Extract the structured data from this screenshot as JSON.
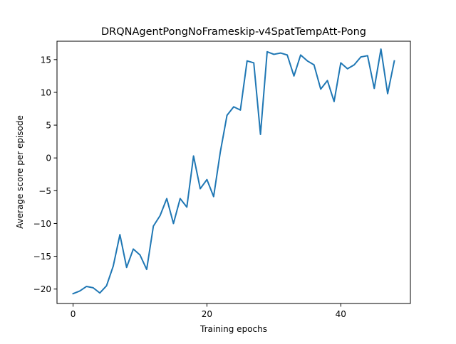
{
  "chart_data": {
    "type": "line",
    "title": "DRQNAgentPongNoFrameskip-v4SpatTempAtt-Pong",
    "xlabel": "Training epochs",
    "ylabel": "Average score per episode",
    "xlim": [
      -2.4,
      50.4
    ],
    "ylim": [
      -22.2,
      17.8
    ],
    "xticks": [
      0,
      20,
      40
    ],
    "yticks": [
      -20,
      -15,
      -10,
      -5,
      0,
      5,
      10,
      15
    ],
    "xtick_labels": [
      "0",
      "20",
      "40"
    ],
    "ytick_labels": [
      "−20",
      "−15",
      "−10",
      "−5",
      "0",
      "5",
      "10",
      "15"
    ],
    "grid": false,
    "line_color": "#1f77b4",
    "series": [
      {
        "x": [
          0,
          1,
          2,
          3,
          4,
          5,
          6,
          7,
          8,
          9,
          10,
          11,
          12,
          13,
          14,
          15,
          16,
          17,
          18,
          19,
          20,
          21,
          22,
          23,
          24,
          25,
          26,
          27,
          28,
          29,
          30,
          31,
          32,
          33,
          34,
          35,
          36,
          37,
          38,
          39,
          40,
          41,
          42,
          43,
          44,
          45,
          46,
          47,
          48
        ],
        "values": [
          -20.7,
          -20.3,
          -19.6,
          -19.8,
          -20.6,
          -19.5,
          -16.5,
          -11.7,
          -16.7,
          -13.9,
          -14.8,
          -17.0,
          -10.4,
          -8.8,
          -6.2,
          -10.0,
          -6.2,
          -7.5,
          0.3,
          -4.7,
          -3.3,
          -5.9,
          0.9,
          6.5,
          7.8,
          7.3,
          14.8,
          14.5,
          3.6,
          16.2,
          15.8,
          16.0,
          15.7,
          12.5,
          15.7,
          14.8,
          14.2,
          10.5,
          11.8,
          8.6,
          14.5,
          13.6,
          14.2,
          15.4,
          15.6,
          10.6,
          16.6,
          9.8,
          14.8
        ]
      }
    ]
  }
}
